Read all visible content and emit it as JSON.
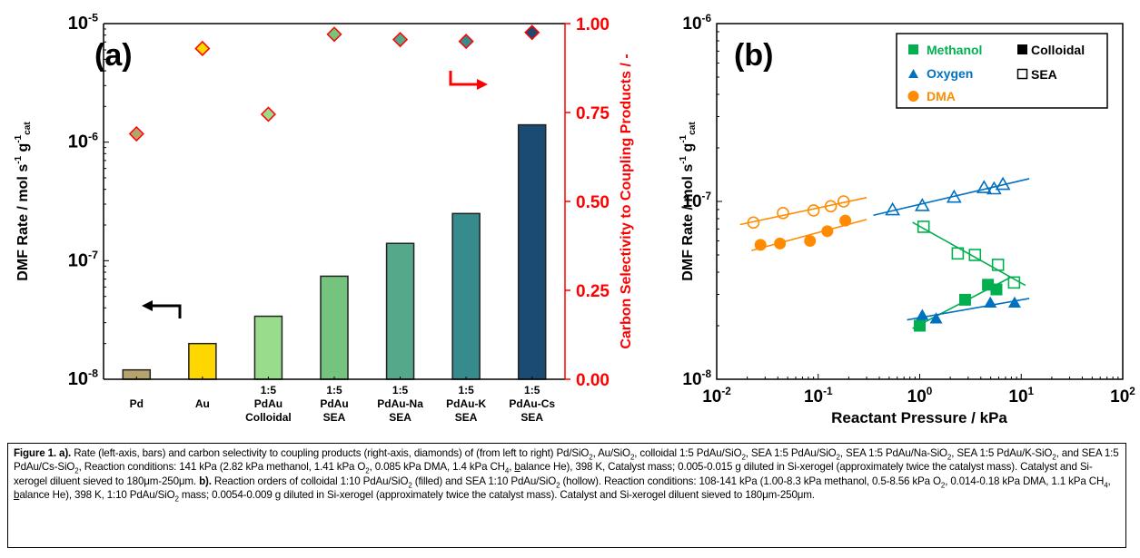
{
  "chart_data": [
    {
      "type": "bar",
      "panel_label": "(a)",
      "title": "",
      "xlabel": "",
      "ylabel": "DMF Rate / mol s^-1 g^-1_cat",
      "ylabel_parts": {
        "main": "DMF Rate / mol s",
        "sup1": "-1",
        "mid": " g",
        "sup2": "-1",
        "sub": "cat"
      },
      "y2label": "Carbon Selectivity to Coupling Products / -",
      "yscale": "log",
      "ylim": [
        1e-08,
        1e-05
      ],
      "y_ticks": [
        {
          "base": "10",
          "exp": "-5"
        },
        {
          "base": "10",
          "exp": "-6"
        },
        {
          "base": "10",
          "exp": "-7"
        },
        {
          "base": "10",
          "exp": "-8"
        }
      ],
      "y2lim": [
        0,
        1
      ],
      "y2_ticks": [
        "0.00",
        "0.25",
        "0.50",
        "0.75",
        "1.00"
      ],
      "categories": [
        [
          "",
          "Pd",
          ""
        ],
        [
          "",
          "Au",
          ""
        ],
        [
          "1:5",
          "PdAu",
          "Colloidal"
        ],
        [
          "1:5",
          "PdAu",
          "SEA"
        ],
        [
          "1:5",
          "PdAu-Na",
          "SEA"
        ],
        [
          "1:5",
          "PdAu-K",
          "SEA"
        ],
        [
          "1:5",
          "PdAu-Cs",
          "SEA"
        ]
      ],
      "series": [
        {
          "name": "DMF Rate (bars, left axis)",
          "axis": "left",
          "values": [
            1.2e-08,
            2e-08,
            3.4e-08,
            7.4e-08,
            1.4e-07,
            2.5e-07,
            1.4e-06
          ]
        },
        {
          "name": "Carbon selectivity (diamonds, right axis)",
          "axis": "right",
          "values": [
            0.69,
            0.93,
            0.745,
            0.97,
            0.955,
            0.95,
            0.975
          ]
        }
      ],
      "colors": [
        "#b5a36e",
        "#ffd700",
        "#98dc8c",
        "#74c47e",
        "#55a889",
        "#378b8c",
        "#1b4b72"
      ],
      "right_axis_color": "#ff0000",
      "annotations": [
        "left-pointing arrow (bars → left axis)",
        "right-pointing arrow (diamonds → right axis)"
      ]
    },
    {
      "type": "scatter",
      "panel_label": "(b)",
      "title": "",
      "xlabel": "Reactant Pressure / kPa",
      "ylabel": "DMF Rate / mol s^-1 g^-1_cat",
      "ylabel_parts": {
        "main": "DMF Rate / mol s",
        "sup1": "-1",
        "mid": " g",
        "sup2": "-1",
        "sub": "cat"
      },
      "xscale": "log",
      "yscale": "log",
      "xlim": [
        0.01,
        100
      ],
      "ylim": [
        1e-08,
        1e-06
      ],
      "x_ticks": [
        {
          "base": "10",
          "exp": "-2"
        },
        {
          "base": "10",
          "exp": "-1"
        },
        {
          "base": "10",
          "exp": "0"
        },
        {
          "base": "10",
          "exp": "1"
        },
        {
          "base": "10",
          "exp": "2"
        }
      ],
      "y_ticks": [
        {
          "base": "10",
          "exp": "-6"
        },
        {
          "base": "10",
          "exp": "-7"
        },
        {
          "base": "10",
          "exp": "-8"
        }
      ],
      "legend": {
        "placement": "top-right",
        "reactants": [
          {
            "label": "Methanol",
            "marker": "square",
            "color": "#00b050"
          },
          {
            "label": "Oxygen",
            "marker": "triangle",
            "color": "#0070c0"
          },
          {
            "label": "DMA",
            "marker": "circle",
            "color": "#ff8c00"
          }
        ],
        "catalysts": [
          {
            "label": "Colloidal",
            "fill": "filled"
          },
          {
            "label": "SEA",
            "fill": "hollow"
          }
        ]
      },
      "series": [
        {
          "name": "DMA SEA",
          "marker": "circle",
          "filled": false,
          "color": "#ff8c00",
          "x": [
            0.023,
            0.045,
            0.09,
            0.133,
            0.178
          ],
          "y": [
            7.6e-08,
            8.6e-08,
            8.9e-08,
            9.4e-08,
            1e-07
          ],
          "fit_x": [
            0.017,
            0.3
          ]
        },
        {
          "name": "DMA Colloidal",
          "marker": "circle",
          "filled": true,
          "color": "#ff8c00",
          "x": [
            0.027,
            0.042,
            0.083,
            0.123,
            0.185
          ],
          "y": [
            5.7e-08,
            5.8e-08,
            6e-08,
            6.8e-08,
            7.8e-08
          ],
          "fit_x": [
            0.022,
            0.3
          ]
        },
        {
          "name": "Oxygen SEA",
          "marker": "triangle",
          "filled": false,
          "color": "#0070c0",
          "x": [
            0.54,
            1.06,
            2.18,
            4.3,
            5.4,
            6.6
          ],
          "y": [
            9e-08,
            9.5e-08,
            1.06e-07,
            1.2e-07,
            1.18e-07,
            1.25e-07
          ],
          "fit_x": [
            0.35,
            12
          ]
        },
        {
          "name": "Methanol SEA",
          "marker": "square",
          "filled": false,
          "color": "#00b050",
          "x": [
            1.09,
            2.37,
            3.5,
            5.9,
            8.5
          ],
          "y": [
            7.2e-08,
            5.1e-08,
            5e-08,
            4.4e-08,
            3.5e-08
          ],
          "fit_x": [
            0.85,
            11
          ]
        },
        {
          "name": "Methanol Colloidal",
          "marker": "square",
          "filled": true,
          "color": "#00b050",
          "x": [
            1.0,
            2.8,
            4.7,
            5.7
          ],
          "y": [
            2e-08,
            2.8e-08,
            3.4e-08,
            3.2e-08
          ],
          "fit_x": [
            0.85,
            8
          ]
        },
        {
          "name": "Oxygen Colloidal",
          "marker": "triangle",
          "filled": true,
          "color": "#0070c0",
          "x": [
            1.06,
            1.45,
            4.96,
            8.6
          ],
          "y": [
            2.3e-08,
            2.2e-08,
            2.7e-08,
            2.7e-08
          ],
          "fit_x": [
            0.75,
            12
          ]
        }
      ]
    }
  ],
  "caption": {
    "label": "Figure 1. a).",
    "part_a": "Rate (left-axis, bars) and carbon selectivity to coupling products (right-axis, diamonds) of (from left to right) Pd/SiO2, Au/SiO2, colloidal 1:5 PdAu/SiO2, SEA 1:5 PdAu/SiO2, SEA 1:5 PdAu/Na-SiO2, SEA 1:5 PdAu/K-SiO2, and SEA 1:5 PdAu/Cs-SiO2, Reaction conditions: 141 kPa (2.82 kPa methanol, 1.41 kPa O2, 0.085 kPa DMA, 1.4 kPa CH4, balance He), 398 K, Catalyst mass; 0.005-0.015 g diluted in Si-xerogel (approximately twice the catalyst mass). Catalyst and Si-xerogel diluent sieved to 180μm-250μm.",
    "label_b": "b).",
    "part_b": "Reaction orders of colloidal 1:10 PdAu/SiO2 (filled) and SEA 1:10 PdAu/SiO2 (hollow). Reaction conditions: 108-141 kPa (1.00-8.3 kPa methanol, 0.5-8.56 kPa O2, 0.014-0.18 kPa DMA, 1.1 kPa CH4, balance He), 398 K, 1:10 PdAu/SiO2 mass; 0.0054-0.009 g diluted in Si-xerogel (approximately twice the catalyst mass). Catalyst and Si-xerogel diluent sieved to 180μm-250μm."
  }
}
